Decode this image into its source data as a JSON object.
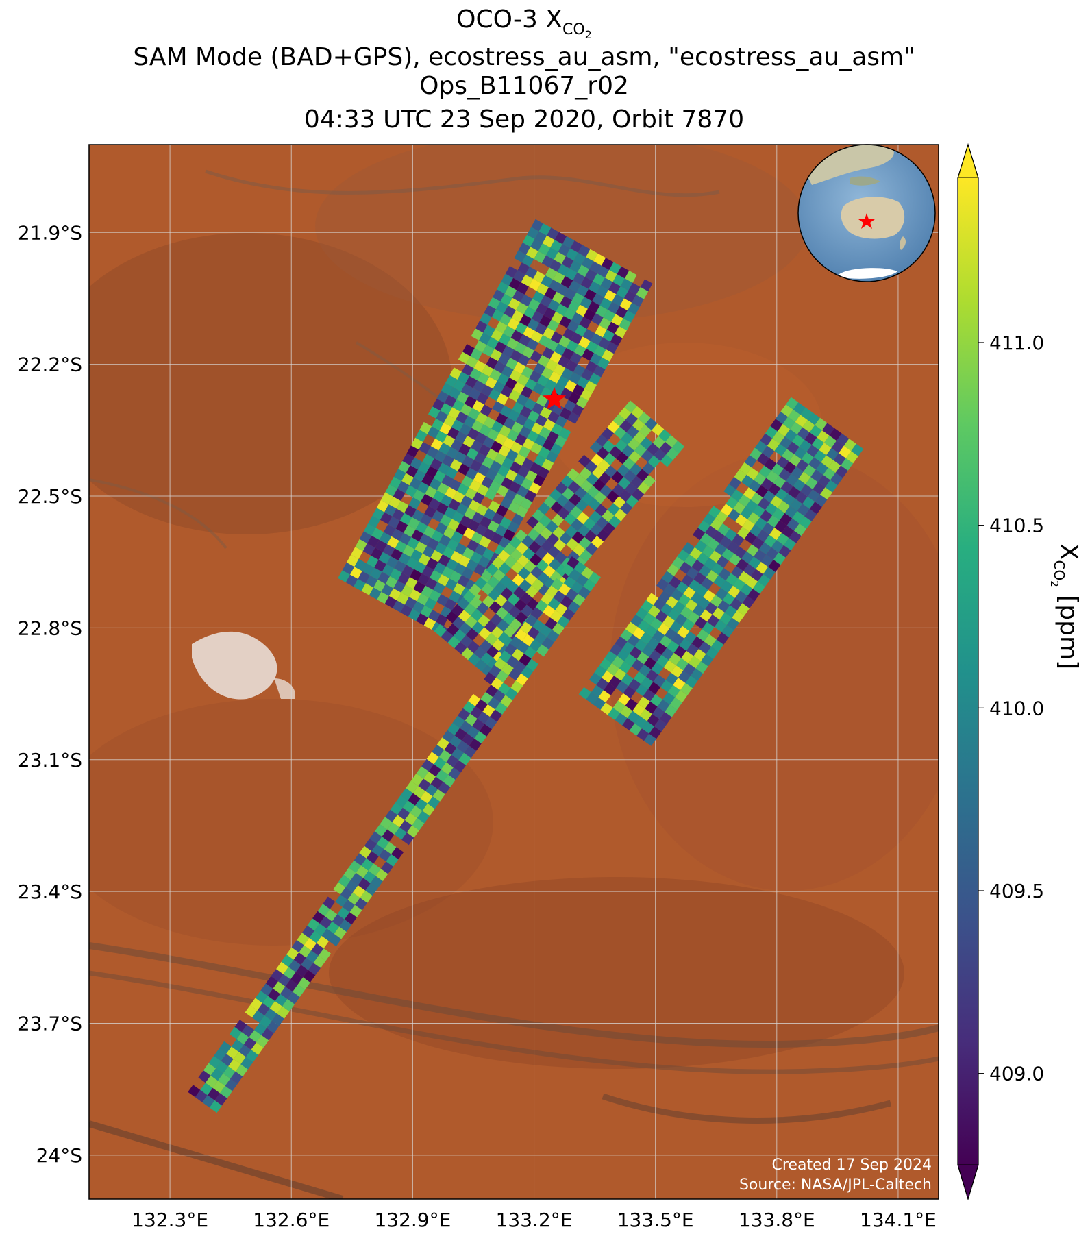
{
  "title": {
    "line1_prefix": "OCO-3 X",
    "line1_sub": "CO",
    "line1_subsub": "2",
    "line2": "SAM Mode (BAD+GPS), ecostress_au_asm, \"ecostress_au_asm\"",
    "line3": "Ops_B11067_r02",
    "line4": "04:33 UTC 23 Sep 2020, Orbit 7870"
  },
  "map": {
    "lat_ticks": [
      "21.9°S",
      "22.2°S",
      "22.5°S",
      "22.8°S",
      "23.1°S",
      "23.4°S",
      "23.7°S",
      "24°S"
    ],
    "lon_ticks": [
      "132.3°E",
      "132.6°E",
      "132.9°E",
      "133.2°E",
      "133.5°E",
      "133.8°E",
      "134.1°E"
    ],
    "lat_values": [
      -21.9,
      -22.2,
      -22.5,
      -22.8,
      -23.1,
      -23.4,
      -23.7,
      -24.0
    ],
    "lon_values": [
      132.3,
      132.6,
      132.9,
      133.2,
      133.5,
      133.8,
      134.1
    ],
    "extent": {
      "lon_min": 132.1,
      "lon_max": 134.2,
      "lat_min": -24.1,
      "lat_max": -21.7
    },
    "target": {
      "lon": 133.25,
      "lat": -22.28,
      "color": "#ff0000"
    },
    "credit_line1": "Created 17 Sep 2024",
    "credit_line2": "Source: NASA/JPL-Caltech",
    "terrain_color": "#b05a2c"
  },
  "colorbar": {
    "label_prefix": "X",
    "label_sub": "CO",
    "label_subsub": "2",
    "label_suffix": " [ppm]",
    "ticks": [
      "411.0",
      "410.5",
      "410.0",
      "409.5",
      "409.0"
    ],
    "tick_values": [
      411.0,
      410.5,
      410.0,
      409.5,
      409.0
    ],
    "vmin": 408.75,
    "vmax": 411.45,
    "colormap": "viridis",
    "extend": "both"
  },
  "chart_data": {
    "type": "heatmap",
    "title": "OCO-3 XCO2 / SAM Mode (BAD+GPS), ecostress_au_asm, \"ecostress_au_asm\" / Ops_B11067_r02 / 04:33 UTC 23 Sep 2020, Orbit 7870",
    "xlabel": "",
    "ylabel": "",
    "xlim": [
      132.1,
      134.2
    ],
    "ylim": [
      -24.1,
      -21.7
    ],
    "colorbar_label": "XCO2 [ppm]",
    "value_range": [
      408.75,
      411.45
    ],
    "swaths": [
      {
        "name": "",
        "start": {
          "lon": 132.86,
          "lat": -22.76
        },
        "end": {
          "lon": 133.35,
          "lat": -21.94
        },
        "width_deg": 0.33
      },
      {
        "name": "",
        "start": {
          "lon": 133.02,
          "lat": -22.86
        },
        "end": {
          "lon": 133.5,
          "lat": -22.34
        },
        "width_deg": 0.17
      },
      {
        "name": "",
        "start": {
          "lon": 133.4,
          "lat": -23.01
        },
        "end": {
          "lon": 133.92,
          "lat": -22.34
        },
        "width_deg": 0.22
      },
      {
        "name": "",
        "start": {
          "lon": 132.38,
          "lat": -23.88
        },
        "end": {
          "lon": 133.33,
          "lat": -22.66
        },
        "width_deg": 0.09
      }
    ]
  }
}
